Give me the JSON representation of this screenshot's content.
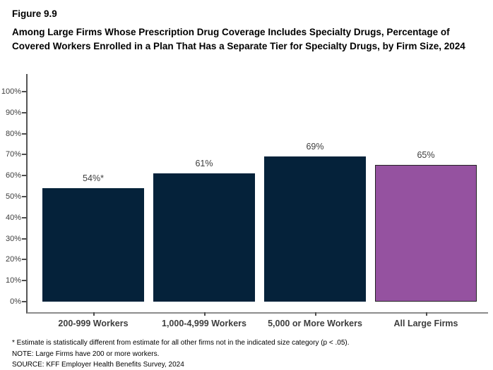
{
  "figure": {
    "number": "Figure 9.9",
    "title": "Among Large Firms Whose Prescription Drug Coverage Includes Specialty Drugs, Percentage of Covered Workers Enrolled in a Plan That Has a Separate Tier for Specialty Drugs, by Firm Size, 2024"
  },
  "chart_data": {
    "type": "bar",
    "title": "Among Large Firms Whose Prescription Drug Coverage Includes Specialty Drugs, Percentage of Covered Workers Enrolled in a Plan That Has a Separate Tier for Specialty Drugs, by Firm Size, 2024",
    "categories": [
      "200-999 Workers",
      "1,000-4,999 Workers",
      "5,000 or More Workers",
      "All Large Firms"
    ],
    "values": [
      54,
      61,
      69,
      65
    ],
    "value_labels": [
      "54%*",
      "61%",
      "69%",
      "65%"
    ],
    "bar_colors": [
      "#05223A",
      "#05223A",
      "#05223A",
      "#9552A0"
    ],
    "bar_border_colors": [
      "#05223A",
      "#05223A",
      "#05223A",
      "#232323"
    ],
    "xlabel": "",
    "ylabel": "",
    "ylim": [
      0,
      100
    ],
    "grid": false,
    "legend": "none",
    "y_ticks": [
      {
        "value": 0,
        "label": "0%"
      },
      {
        "value": 10,
        "label": "10%"
      },
      {
        "value": 20,
        "label": "20%"
      },
      {
        "value": 30,
        "label": "30%"
      },
      {
        "value": 40,
        "label": "40%"
      },
      {
        "value": 50,
        "label": "50%"
      },
      {
        "value": 60,
        "label": "60%"
      },
      {
        "value": 70,
        "label": "70%"
      },
      {
        "value": 80,
        "label": "80%"
      },
      {
        "value": 90,
        "label": "90%"
      },
      {
        "value": 100,
        "label": "100%"
      }
    ]
  },
  "notes": {
    "asterisk": "* Estimate is statistically different from estimate for all other firms not in the indicated size category (p < .05).",
    "note": "NOTE: Large Firms have 200 or more workers.",
    "source": "SOURCE: KFF Employer Health Benefits Survey, 2024"
  },
  "colors": {
    "navy": "#05223A",
    "purple": "#9552A0",
    "axis_gray": "#8C8C8C",
    "label_text": "#3D3D3D"
  }
}
